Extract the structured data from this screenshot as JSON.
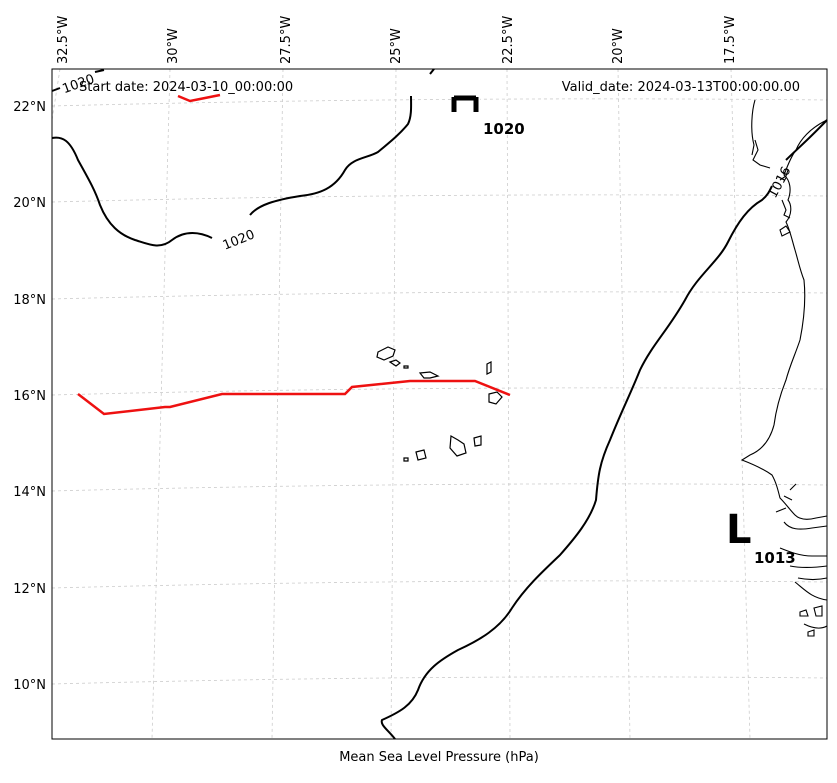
{
  "header": {
    "start_date": "Start date: 2024-03-10_00:00:00",
    "valid_date": "Valid_date: 2024-03-13T00:00:00.00"
  },
  "x_axis_title": "Mean Sea Level Pressure (hPa)",
  "lon_ticks": [
    "32.5°W",
    "30°W",
    "27.5°W",
    "25°W",
    "22.5°W",
    "20°W",
    "17.5°W"
  ],
  "lat_ticks": [
    "22°N",
    "20°N",
    "18°N",
    "16°N",
    "14°N",
    "12°N",
    "10°N"
  ],
  "pressure_centers": [
    {
      "type": "H",
      "value": "1020"
    },
    {
      "type": "L",
      "value": "1013"
    }
  ],
  "contour_labels": [
    "1020",
    "1020",
    "1016"
  ],
  "colors": {
    "isobar": "#000000",
    "track": "#ee1111",
    "coast": "#000000",
    "grid": "#cccccc"
  }
}
